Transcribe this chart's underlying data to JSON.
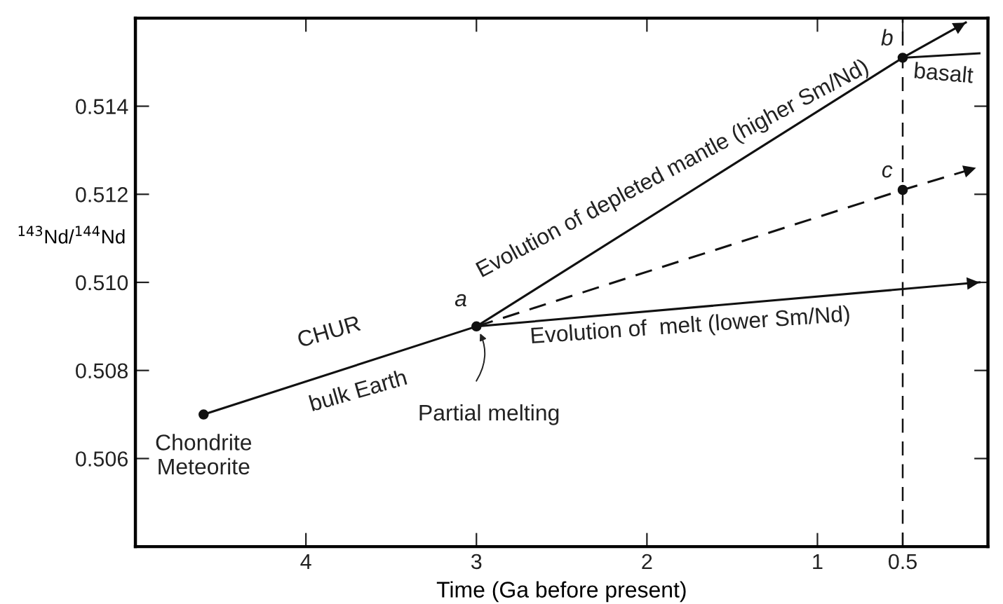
{
  "chart_data": {
    "type": "line",
    "xlabel": "Time (Ga before present)",
    "ylabel": "$^{143}$Nd/$^{144}$Nd",
    "xlim": [
      5.0,
      0.0
    ],
    "xticks": [
      4,
      3,
      2,
      1,
      0.5
    ],
    "ylim": [
      0.504,
      0.516
    ],
    "yticks": [
      {
        "value": 0.506,
        "label": "0.506"
      },
      {
        "value": 0.508,
        "label": "0.508"
      },
      {
        "value": 0.51,
        "label": "0.510"
      },
      {
        "value": 0.512,
        "label": "0.512"
      },
      {
        "value": 0.514,
        "label": "0.514"
      }
    ],
    "grid": false,
    "legend": false,
    "marker": "none",
    "series": [
      {
        "color": "#111111",
        "x": [
          4.6,
          3
        ],
        "values": [
          0.507,
          0.509
        ],
        "line_style": "solid"
      },
      {
        "color": "#111111",
        "x": [
          3,
          0.5,
          0.13
        ],
        "values": [
          0.509,
          0.5151,
          0.5159
        ],
        "line_style": "solid"
      },
      {
        "color": "#111111",
        "x": [
          3,
          0.5,
          0.07
        ],
        "values": [
          0.509,
          0.5121,
          0.5126
        ],
        "line_style": "dashed"
      },
      {
        "color": "#111111",
        "x": [
          3,
          0.05
        ],
        "values": [
          0.509,
          0.51
        ],
        "line_style": "solid"
      },
      {
        "color": "#111111",
        "x": [
          0.5,
          0.05
        ],
        "values": [
          0.5151,
          0.5152
        ],
        "line_style": "solid"
      },
      {
        "type": "scatter",
        "color": "#111111",
        "marker": "circle",
        "x": [
          4.6,
          3,
          0.5,
          0.5
        ],
        "values": [
          0.507,
          0.509,
          0.5151,
          0.5121
        ]
      }
    ],
    "ref_lines": [
      {
        "axis": "x",
        "value": 0.5,
        "color": "#111111",
        "line_style": "dashed"
      }
    ],
    "annotations": [
      {
        "text": "Chondrite\nMeteorite",
        "x": 4.6,
        "y": 0.507
      },
      {
        "text": "CHUR",
        "x": 3.8,
        "y": 0.508
      },
      {
        "text": "bulk Earth",
        "x": 3.8,
        "y": 0.508
      },
      {
        "text": "a",
        "x": 3,
        "y": 0.509
      },
      {
        "text": "Partial melting",
        "x": 3,
        "y": 0.509
      },
      {
        "text": "Evolution of depleted mantle (higher Sm/Nd)",
        "x": 1.75,
        "y": 0.512
      },
      {
        "text": "Evolution of  melt (lower Sm/Nd)",
        "x": 1.75,
        "y": 0.5095
      },
      {
        "text": "b",
        "x": 0.5,
        "y": 0.5151
      },
      {
        "text": "c",
        "x": 0.5,
        "y": 0.5121
      },
      {
        "text": "basalt",
        "x": 0.5,
        "y": 0.5151
      }
    ]
  }
}
